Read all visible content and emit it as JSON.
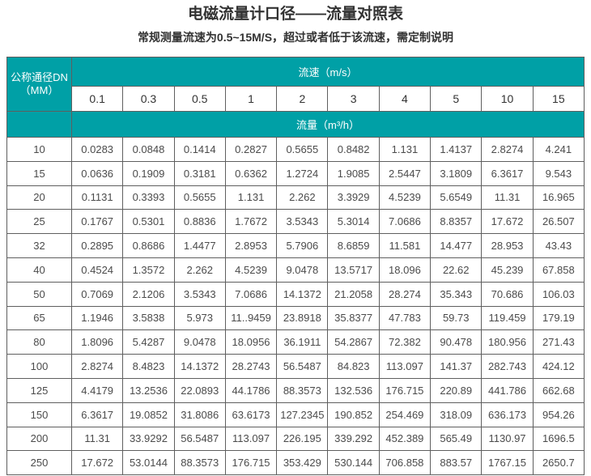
{
  "page": {
    "title": "电磁流量计口径——流量对照表",
    "subtitle": "常规测量流速为0.5~15M/S，超过或者低于该流速，需定制说明"
  },
  "colors": {
    "header_teal": "#00A0A6",
    "table_border": "#5F5F5F",
    "header_text": "#FFFFFF",
    "body_text": "#4B4B4B"
  },
  "table": {
    "corner_header_line1": "公称通径DN",
    "corner_header_line2": "（MM）",
    "velocity_header": "流速（m/s）",
    "flow_header": "流量（m³/h）",
    "velocities": [
      "0.1",
      "0.3",
      "0.5",
      "1",
      "2",
      "3",
      "4",
      "5",
      "10",
      "15"
    ],
    "rows": [
      {
        "dn": "10",
        "values": [
          "0.0283",
          "0.0848",
          "0.1414",
          "0.2827",
          "0.5655",
          "0.8482",
          "1.131",
          "1.4137",
          "2.8274",
          "4.241"
        ]
      },
      {
        "dn": "15",
        "values": [
          "0.0636",
          "0.1909",
          "0.3181",
          "0.6362",
          "1.2724",
          "1.9085",
          "2.5447",
          "3.1809",
          "6.3617",
          "9.543"
        ]
      },
      {
        "dn": "20",
        "values": [
          "0.1131",
          "0.3393",
          "0.5655",
          "1.131",
          "2.262",
          "3.3929",
          "4.5239",
          "5.6549",
          "11.31",
          "16.965"
        ]
      },
      {
        "dn": "25",
        "values": [
          "0.1767",
          "0.5301",
          "0.8836",
          "1.7672",
          "3.5343",
          "5.3014",
          "7.0686",
          "8.8357",
          "17.672",
          "26.507"
        ]
      },
      {
        "dn": "32",
        "values": [
          "0.2895",
          "0.8686",
          "1.4477",
          "2.8953",
          "5.7906",
          "8.6859",
          "11.581",
          "14.477",
          "28.953",
          "43.43"
        ]
      },
      {
        "dn": "40",
        "values": [
          "0.4524",
          "1.3572",
          "2.262",
          "4.5239",
          "9.0478",
          "13.5717",
          "18.096",
          "22.62",
          "45.239",
          "67.858"
        ]
      },
      {
        "dn": "50",
        "values": [
          "0.7069",
          "2.1206",
          "3.5343",
          "7.0686",
          "14.1372",
          "21.2058",
          "28.274",
          "35.343",
          "70.686",
          "106.03"
        ]
      },
      {
        "dn": "65",
        "values": [
          "1.1946",
          "3.5838",
          "5.973",
          "11..9459",
          "23.8918",
          "35.8377",
          "47.783",
          "59.73",
          "119.459",
          "179.19"
        ]
      },
      {
        "dn": "80",
        "values": [
          "1.8096",
          "5.4287",
          "9.0478",
          "18.0956",
          "36.1911",
          "54.2867",
          "72.382",
          "90.478",
          "180.956",
          "271.43"
        ]
      },
      {
        "dn": "100",
        "values": [
          "2.8274",
          "8.4823",
          "14.1372",
          "28.2743",
          "56.5487",
          "84.823",
          "113.097",
          "141.37",
          "282.743",
          "424.12"
        ]
      },
      {
        "dn": "125",
        "values": [
          "4.4179",
          "13.2536",
          "22.0893",
          "44.1786",
          "88.3573",
          "132.536",
          "176.715",
          "220.89",
          "441.786",
          "662.68"
        ]
      },
      {
        "dn": "150",
        "values": [
          "6.3617",
          "19.0852",
          "31.8086",
          "63.6173",
          "127.2345",
          "190.852",
          "254.469",
          "318.09",
          "636.173",
          "954.26"
        ]
      },
      {
        "dn": "200",
        "values": [
          "11.31",
          "33.9292",
          "56.5487",
          "113.097",
          "226.195",
          "339.292",
          "452.389",
          "565.49",
          "1130.97",
          "1696.5"
        ]
      },
      {
        "dn": "250",
        "values": [
          "17.672",
          "53.0144",
          "88.3573",
          "176.715",
          "353.429",
          "530.144",
          "706.858",
          "883.57",
          "1767.15",
          "2650.7"
        ]
      }
    ]
  }
}
